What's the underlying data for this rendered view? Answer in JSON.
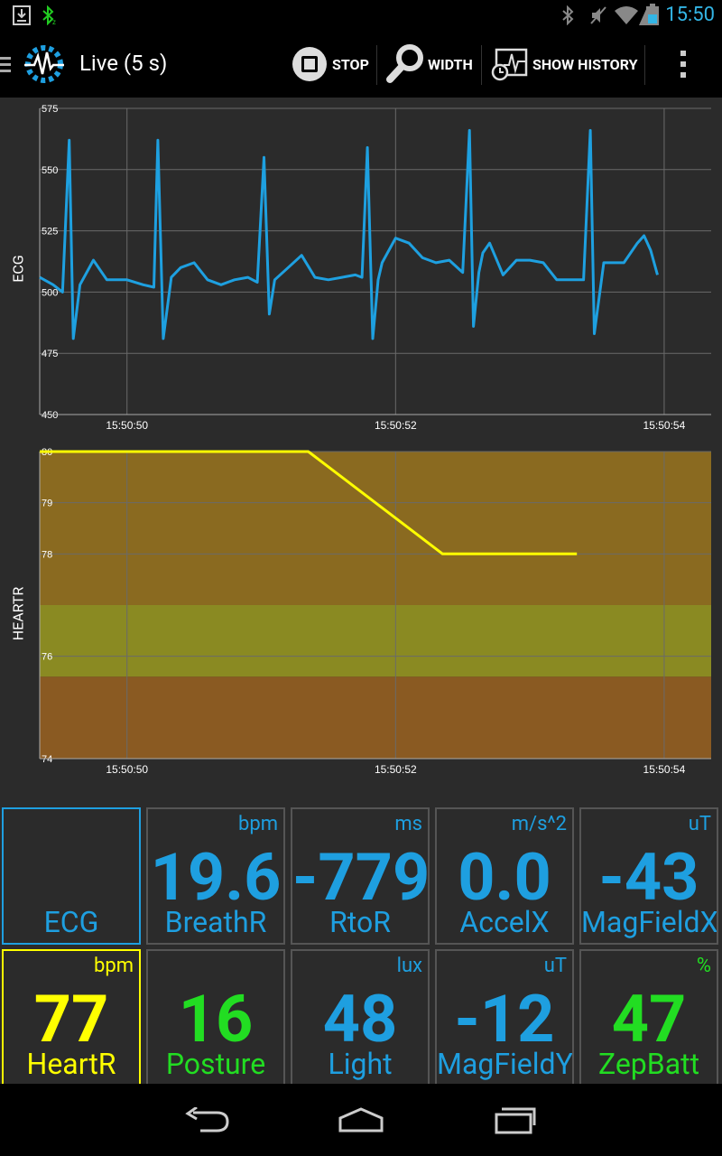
{
  "status_bar": {
    "time": "15:50"
  },
  "action_bar": {
    "title": "Live (5 s)",
    "stop_label": "STOP",
    "width_label": "WIDTH",
    "history_label": "SHOW HISTORY"
  },
  "colors": {
    "accent": "#33b5e5",
    "yellow": "#ffff00",
    "green": "#22dd22"
  },
  "chart_data": [
    {
      "type": "line",
      "ylabel": "ECG",
      "ylim": [
        450,
        575
      ],
      "y_ticks": [
        "575",
        "550",
        "525",
        "500",
        "475",
        "450"
      ],
      "x_ticks": [
        "15:50:50",
        "15:50:52",
        "15:50:54"
      ],
      "series": [
        {
          "color": "#1ea0e0",
          "x": [
            49.35,
            49.45,
            49.52,
            49.57,
            49.6,
            49.65,
            49.75,
            49.85,
            50.0,
            50.12,
            50.2,
            50.23,
            50.27,
            50.33,
            50.4,
            50.5,
            50.6,
            50.7,
            50.8,
            50.9,
            50.97,
            51.02,
            51.06,
            51.1,
            51.2,
            51.3,
            51.4,
            51.5,
            51.6,
            51.7,
            51.75,
            51.79,
            51.83,
            51.87,
            51.9,
            52.0,
            52.1,
            52.2,
            52.3,
            52.4,
            52.5,
            52.55,
            52.58,
            52.62,
            52.65,
            52.7,
            52.8,
            52.9,
            53.0,
            53.1,
            53.2,
            53.3,
            53.4,
            53.45,
            53.48,
            53.55,
            53.6,
            53.7,
            53.8,
            53.85,
            53.9,
            53.95
          ],
          "y": [
            506,
            503,
            500,
            562,
            481,
            503,
            513,
            505,
            505,
            503,
            502,
            562,
            481,
            506,
            510,
            512,
            505,
            503,
            505,
            506,
            504,
            555,
            491,
            505,
            510,
            515,
            506,
            505,
            506,
            507,
            506,
            559,
            481,
            505,
            512,
            522,
            520,
            514,
            512,
            513,
            508,
            566,
            486,
            508,
            516,
            520,
            507,
            513,
            513,
            512,
            505,
            505,
            505,
            566,
            483,
            512,
            512,
            512,
            520,
            523,
            517,
            507
          ]
        }
      ]
    },
    {
      "type": "line",
      "ylabel": "HEARTR",
      "ylim": [
        74,
        80
      ],
      "y_ticks": [
        "80",
        "79",
        "78",
        "76",
        "74"
      ],
      "x_ticks": [
        "15:50:50",
        "15:50:52",
        "15:50:54"
      ],
      "bands": [
        {
          "from": 77,
          "to": 80,
          "color": "#8a6a20"
        },
        {
          "from": 75.6,
          "to": 77,
          "color": "#8a8a22"
        },
        {
          "from": 74,
          "to": 75.6,
          "color": "#8a5a22"
        }
      ],
      "series": [
        {
          "color": "#ffff00",
          "x": [
            49.35,
            51.35,
            52.35,
            53.35
          ],
          "y": [
            80,
            80,
            78,
            78
          ]
        }
      ]
    }
  ],
  "tiles": [
    {
      "value": "",
      "name": "ECG",
      "unit": "",
      "color": "#1e9fe0",
      "border": "#1e9fe0"
    },
    {
      "value": "19.6",
      "name": "BreathR",
      "unit": "bpm",
      "color": "#1e9fe0",
      "border": "#555555"
    },
    {
      "value": "-779",
      "name": "RtoR",
      "unit": "ms",
      "color": "#1e9fe0",
      "border": "#555555"
    },
    {
      "value": "0.0",
      "name": "AccelX",
      "unit": "m/s^2",
      "color": "#1e9fe0",
      "border": "#555555"
    },
    {
      "value": "-43",
      "name": "MagFieldX",
      "unit": "uT",
      "color": "#1e9fe0",
      "border": "#555555"
    },
    {
      "value": "77",
      "name": "HeartR",
      "unit": "bpm",
      "color": "#ffff00",
      "border": "#ffff00"
    },
    {
      "value": "16",
      "name": "Posture",
      "unit": "",
      "color": "#22dd22",
      "border": "#555555"
    },
    {
      "value": "48",
      "name": "Light",
      "unit": "lux",
      "color": "#1e9fe0",
      "border": "#555555"
    },
    {
      "value": "-12",
      "name": "MagFieldY",
      "unit": "uT",
      "color": "#1e9fe0",
      "border": "#555555"
    },
    {
      "value": "47",
      "name": "ZepBatt",
      "unit": "%",
      "color": "#22dd22",
      "border": "#555555"
    }
  ]
}
